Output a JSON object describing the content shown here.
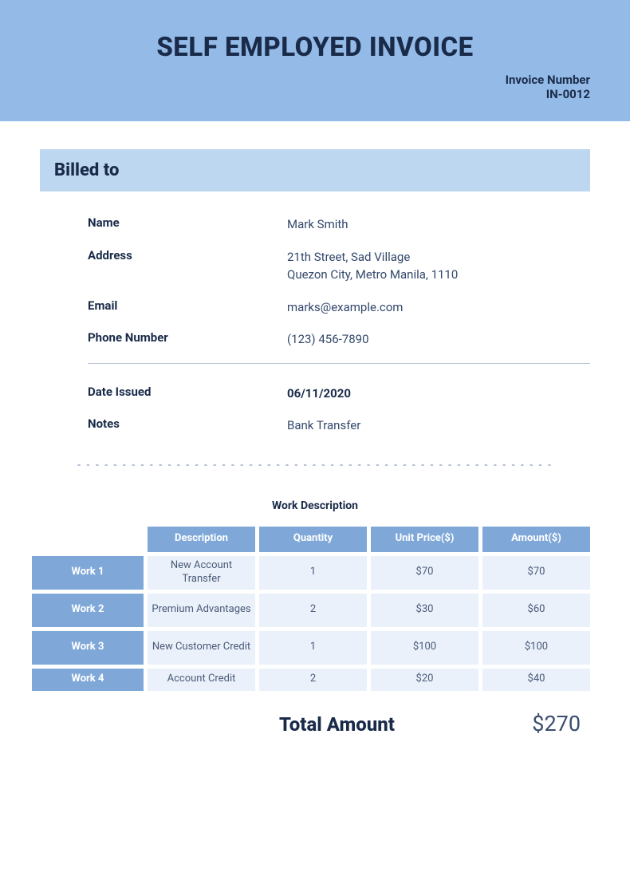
{
  "header": {
    "title": "SELF EMPLOYED INVOICE",
    "invoice_number_label": "Invoice Number",
    "invoice_number": "IN-0012",
    "bg_color": "#94bae7",
    "title_color": "#1a2b4a",
    "title_fontsize": 33
  },
  "billed_to": {
    "section_label": "Billed to",
    "bar_bg_color": "#bdd7f0",
    "labels": {
      "name": "Name",
      "address": "Address",
      "email": "Email",
      "phone": "Phone Number",
      "date_issued": "Date Issued",
      "notes": "Notes"
    },
    "values": {
      "name": "Mark Smith",
      "address_line1": "21th Street, Sad Village",
      "address_line2": "Quezon City, Metro Manila, 1110",
      "email": "marks@example.com",
      "phone": "(123) 456-7890",
      "date_issued": "06/11/2020",
      "notes": "Bank Transfer"
    }
  },
  "work_table": {
    "title": "Work Description",
    "col_header_bg": "#7fa8d9",
    "col_header_color": "#ffffff",
    "data_cell_bg": "#eaf1fa",
    "data_cell_color": "#4a5a78",
    "columns": [
      "Description",
      "Quantity",
      "Unit Price($)",
      "Amount($)"
    ],
    "rows": [
      {
        "label": "Work 1",
        "description": "New Account Transfer",
        "quantity": "1",
        "unit_price": "$70",
        "amount": "$70"
      },
      {
        "label": "Work 2",
        "description": "Premium Advantages",
        "quantity": "2",
        "unit_price": "$30",
        "amount": "$60"
      },
      {
        "label": "Work 3",
        "description": "New Customer Credit",
        "quantity": "1",
        "unit_price": "$100",
        "amount": "$100"
      },
      {
        "label": "Work 4",
        "description": "Account Credit",
        "quantity": "2",
        "unit_price": "$20",
        "amount": "$40"
      }
    ]
  },
  "total": {
    "label": "Total Amount",
    "value": "$270",
    "label_fontsize": 24,
    "value_fontsize": 27
  },
  "colors": {
    "text_primary": "#1a2b4a",
    "text_secondary": "#33486b",
    "divider": "#b8c2d4",
    "dashed": "#6b84b0"
  }
}
